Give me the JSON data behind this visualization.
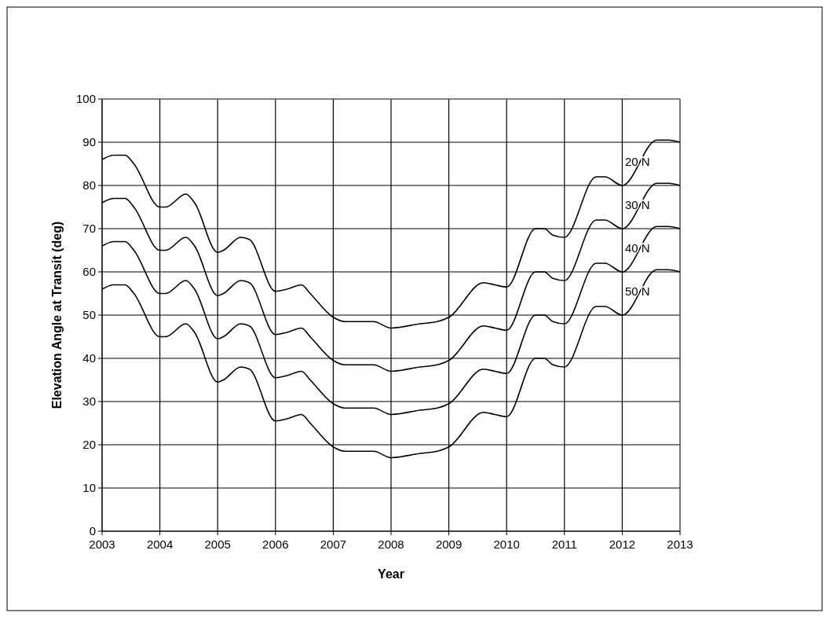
{
  "chart_data": {
    "type": "line",
    "xlabel": "Year",
    "ylabel": "Elevation Angle at Transit (deg)",
    "xlim": [
      2003,
      2013
    ],
    "xticks": [
      2003,
      2004,
      2005,
      2006,
      2007,
      2008,
      2009,
      2010,
      2011,
      2012,
      2013
    ],
    "ylim": [
      0,
      100
    ],
    "yticks": [
      0,
      10,
      20,
      30,
      40,
      50,
      60,
      70,
      80,
      90,
      100
    ],
    "grid": true,
    "marker": "none",
    "line_style": "solid",
    "x": [
      2003,
      2003.2,
      2003.4,
      2003.55,
      2004,
      2004.1,
      2004.45,
      2004.6,
      2005,
      2005.1,
      2005.4,
      2005.55,
      2006,
      2006.2,
      2006.45,
      2006.6,
      2007,
      2007.2,
      2007.7,
      2008,
      2008.5,
      2008.8,
      2009,
      2009.6,
      2009.8,
      2010,
      2010.5,
      2010.65,
      2010.8,
      2011,
      2011.55,
      2011.7,
      2012,
      2012.6,
      2012.8,
      2013
    ],
    "series": [
      {
        "name": "20 N",
        "color": "#000000",
        "values": [
          86,
          87,
          87,
          85,
          75,
          75,
          78,
          76,
          64.5,
          65,
          68,
          67.5,
          55.5,
          56,
          57,
          55,
          49.5,
          48.5,
          48.5,
          47,
          48,
          48.5,
          49.5,
          57.5,
          57,
          56.5,
          70,
          70,
          68.5,
          68,
          82,
          82,
          80,
          90.5,
          90.5,
          90
        ]
      },
      {
        "name": "30 N",
        "color": "#000000",
        "values": [
          76,
          77,
          77,
          75,
          65,
          65,
          68,
          66,
          54.5,
          55,
          58,
          57.5,
          45.5,
          46,
          47,
          45,
          39.5,
          38.5,
          38.5,
          37,
          38,
          38.5,
          39.5,
          47.5,
          47,
          46.5,
          60,
          60,
          58.5,
          58,
          72,
          72,
          70,
          80.5,
          80.5,
          80
        ]
      },
      {
        "name": "40 N",
        "color": "#000000",
        "values": [
          66,
          67,
          67,
          65,
          55,
          55,
          58,
          56,
          44.5,
          45,
          48,
          47.5,
          35.5,
          36,
          37,
          35,
          29.5,
          28.5,
          28.5,
          27,
          28,
          28.5,
          29.5,
          37.5,
          37,
          36.5,
          50,
          50,
          48.5,
          48,
          62,
          62,
          60,
          70.5,
          70.5,
          70
        ]
      },
      {
        "name": "50 N",
        "color": "#000000",
        "values": [
          56,
          57,
          57,
          55,
          45,
          45,
          48,
          46,
          34.5,
          35,
          38,
          37.5,
          25.5,
          26,
          27,
          25,
          19.5,
          18.5,
          18.5,
          17,
          18,
          18.5,
          19.5,
          27.5,
          27,
          26.5,
          40,
          40,
          38.5,
          38,
          52,
          52,
          50,
          60.5,
          60.5,
          60
        ]
      }
    ]
  }
}
